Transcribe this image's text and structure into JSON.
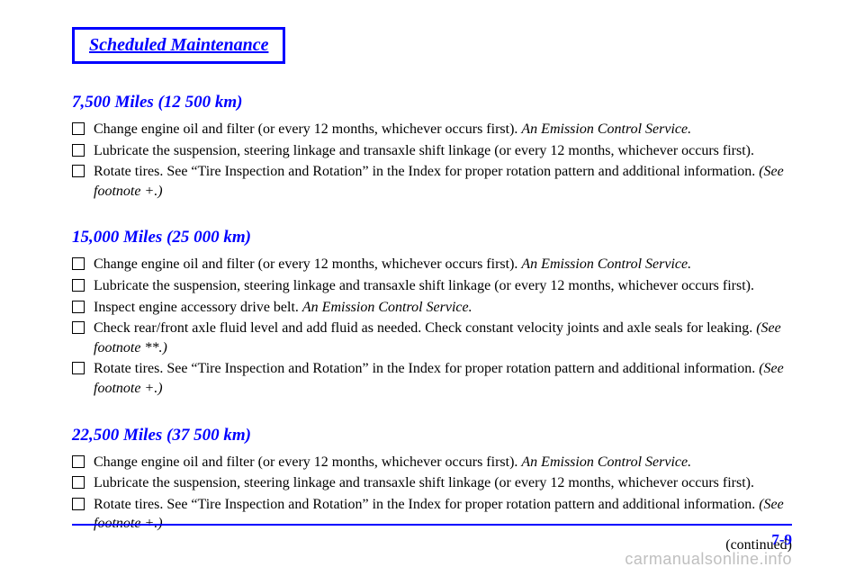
{
  "badge": "Scheduled Maintenance",
  "sections": [
    {
      "heading": "7,500 Miles (12 500 km)",
      "items": [
        "Change engine oil and filter (or every 12 months, whichever occurs first). <span class=\"footnote-italic\">An Emission Control Service.</span>",
        "Lubricate the suspension, steering linkage and transaxle shift linkage (or every 12 months, whichever occurs first).",
        "Rotate tires. See &ldquo;Tire Inspection and Rotation&rdquo; in the Index for proper rotation pattern and additional information. <span class=\"footnote-italic\">(See footnote +.)</span>"
      ]
    },
    {
      "heading": "15,000 Miles (25 000 km)",
      "items": [
        "Change engine oil and filter (or every 12 months, whichever occurs first). <span class=\"footnote-italic\">An Emission Control Service.</span>",
        "Lubricate the suspension, steering linkage and transaxle shift linkage (or every 12 months, whichever occurs first).",
        "Inspect engine accessory drive belt. <span class=\"footnote-italic\">An Emission Control Service.</span>",
        "Check rear/front axle fluid level and add fluid as needed. Check constant velocity joints and axle seals for leaking. <span class=\"footnote-italic\">(See footnote **.)</span>",
        "Rotate tires. See &ldquo;Tire Inspection and Rotation&rdquo; in the Index for proper rotation pattern and additional information. <span class=\"footnote-italic\">(See footnote +.)</span>"
      ]
    },
    {
      "heading": "22,500 Miles (37 500 km)",
      "items": [
        "Change engine oil and filter (or every 12 months, whichever occurs first). <span class=\"footnote-italic\">An Emission Control Service.</span>",
        "Lubricate the suspension, steering linkage and transaxle shift linkage (or every 12 months, whichever occurs first).",
        "Rotate tires. See &ldquo;Tire Inspection and Rotation&rdquo; in the Index for proper rotation pattern and additional information. <span class=\"footnote-italic\">(See footnote +.)</span>"
      ]
    }
  ],
  "continued": "(continued)",
  "page_number": "7-9",
  "watermark": "carmanualsonline.info"
}
